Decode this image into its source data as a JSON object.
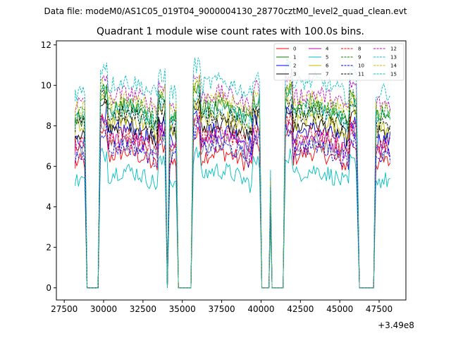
{
  "chart_data": {
    "type": "line",
    "suptitle": "Data file: modeM0/AS1C05_019T04_9000004130_28770cztM0_level2_quad_clean.evt",
    "title": "Quadrant 1 module wise count rates with 100.0s bins.",
    "xlabel": "",
    "ylabel": "",
    "x_offset_label": "+3.49e8",
    "xlim": [
      27000,
      49200
    ],
    "ylim": [
      -0.6,
      12.2
    ],
    "xticks": [
      27500,
      30000,
      32500,
      35000,
      37500,
      40000,
      42500,
      45000,
      47500
    ],
    "yticks": [
      0,
      2,
      4,
      6,
      8,
      10,
      12
    ],
    "legend_position": "upper-right",
    "grid": false,
    "segments": [
      {
        "start": 28200,
        "end": 28800
      },
      {
        "start": 29800,
        "end": 33900
      },
      {
        "start": 34200,
        "end": 34600
      },
      {
        "start": 35700,
        "end": 39900
      },
      {
        "start": 41550,
        "end": 46100
      },
      {
        "start": 47300,
        "end": 48200
      }
    ],
    "spikes": [
      {
        "x": 40600,
        "height_factor": 0.6
      }
    ],
    "series": [
      {
        "name": "0",
        "color": "#ff0000",
        "dash": "solid",
        "level": 6.2
      },
      {
        "name": "1",
        "color": "#008000",
        "dash": "solid",
        "level": 8.4
      },
      {
        "name": "2",
        "color": "#0000ff",
        "dash": "solid",
        "level": 7.3
      },
      {
        "name": "3",
        "color": "#000000",
        "dash": "solid",
        "level": 7.6
      },
      {
        "name": "4",
        "color": "#bf00bf",
        "dash": "solid",
        "level": 6.9
      },
      {
        "name": "5",
        "color": "#00bfbf",
        "dash": "solid",
        "level": 5.3
      },
      {
        "name": "6",
        "color": "#bfbf00",
        "dash": "solid",
        "level": 7.9
      },
      {
        "name": "7",
        "color": "#808080",
        "dash": "solid",
        "level": 6.7
      },
      {
        "name": "8",
        "color": "#ff0000",
        "dash": "dashed",
        "level": 7.1
      },
      {
        "name": "9",
        "color": "#008000",
        "dash": "dashed",
        "level": 8.6
      },
      {
        "name": "10",
        "color": "#0000ff",
        "dash": "dashed",
        "level": 6.5
      },
      {
        "name": "11",
        "color": "#000000",
        "dash": "dashed",
        "level": 8.1
      },
      {
        "name": "12",
        "color": "#bf00bf",
        "dash": "dashed",
        "level": 9.1
      },
      {
        "name": "13",
        "color": "#00bfbf",
        "dash": "dashed",
        "level": 9.7
      },
      {
        "name": "14",
        "color": "#bfbf00",
        "dash": "dashed",
        "level": 8.8
      },
      {
        "name": "15",
        "color": "#00bfbf",
        "dash": "dashed",
        "level": 8.3
      }
    ]
  }
}
